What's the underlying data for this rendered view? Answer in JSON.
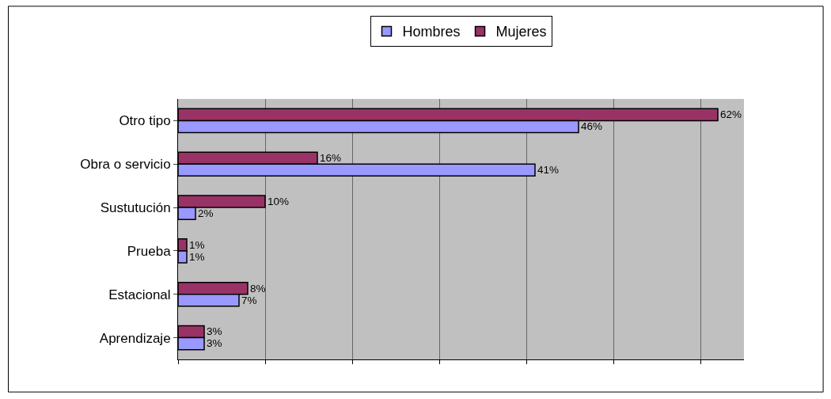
{
  "chart_data": {
    "type": "bar",
    "orientation": "horizontal",
    "categories": [
      "Otro tipo",
      "Obra o servicio",
      "Sustutución",
      "Prueba",
      "Estacional",
      "Aprendizaje"
    ],
    "series": [
      {
        "name": "Hombres",
        "color": "#9999ff",
        "values": [
          46,
          41,
          2,
          1,
          7,
          3
        ],
        "value_labels": [
          "46%",
          "41%",
          "2%",
          "1%",
          "7%",
          "3%"
        ]
      },
      {
        "name": "Mujeres",
        "color": "#993366",
        "values": [
          62,
          16,
          10,
          1,
          8,
          3
        ],
        "value_labels": [
          "62%",
          "16%",
          "10%",
          "1%",
          "8%",
          "3%"
        ]
      }
    ],
    "xlim": [
      0,
      65
    ],
    "xticks": [
      {
        "value": 0,
        "label": null
      },
      {
        "value": 10,
        "label": null
      },
      {
        "value": 20,
        "label": null
      },
      {
        "value": 30,
        "label": null
      },
      {
        "value": 40,
        "label": null
      },
      {
        "value": 50,
        "label": null
      },
      {
        "value": 60,
        "label": null
      }
    ],
    "tick_labels": "y",
    "grid": "x",
    "legend": "top"
  }
}
